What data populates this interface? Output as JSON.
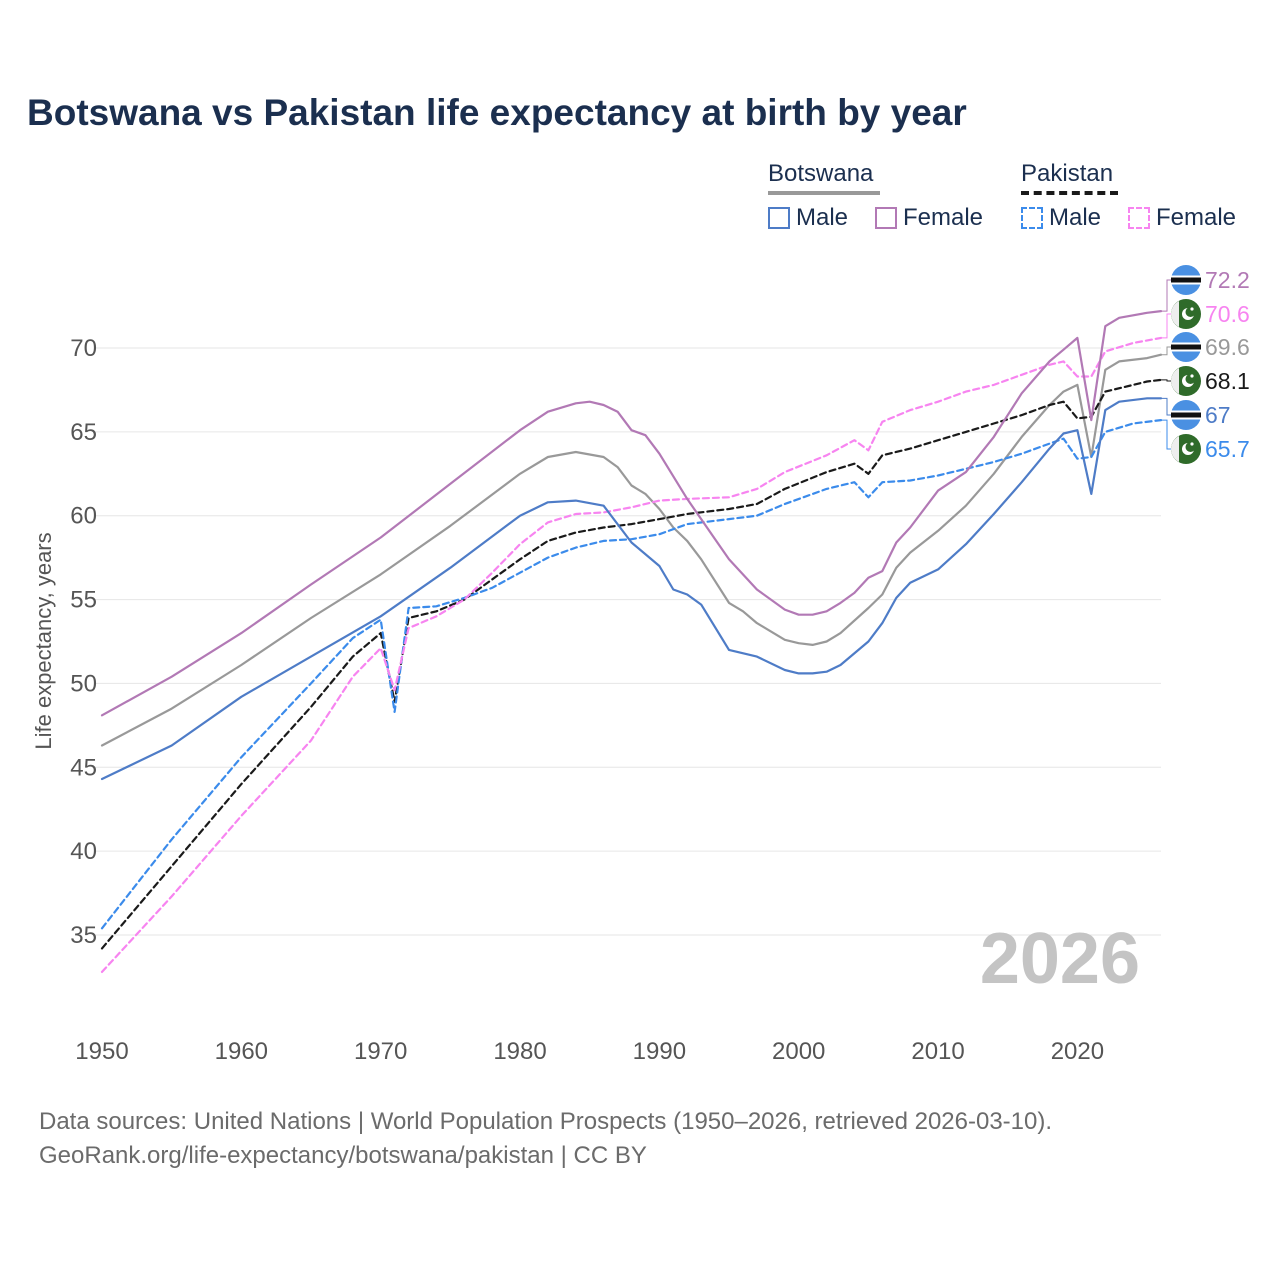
{
  "title": "Botswana vs Pakistan life expectancy at birth by year",
  "legend": {
    "groups": [
      {
        "name": "Botswana",
        "line_color": "#999999",
        "dashed": false,
        "items": [
          {
            "label": "Male",
            "color": "#4e7cc7",
            "dashed": false
          },
          {
            "label": "Female",
            "color": "#b279b5",
            "dashed": false
          }
        ]
      },
      {
        "name": "Pakistan",
        "line_color": "#1a1a1a",
        "dashed": true,
        "items": [
          {
            "label": "Male",
            "color": "#3b8beb",
            "dashed": true
          },
          {
            "label": "Female",
            "color": "#f784f0",
            "dashed": true
          }
        ]
      }
    ]
  },
  "year_watermark": "2026",
  "source": {
    "line1": "Data sources: United Nations | World Population Prospects (1950–2026, retrieved 2026-03-10).",
    "line2": "GeoRank.org/life-expectancy/botswana/pakistan | CC BY"
  },
  "chart_data": {
    "type": "line",
    "title": "Botswana vs Pakistan life expectancy at birth by year",
    "xlabel": "",
    "ylabel": "Life expectancy, years",
    "xlim": [
      1950,
      2026
    ],
    "ylim": [
      30,
      75
    ],
    "x_ticks": [
      1950,
      1960,
      1970,
      1980,
      1990,
      2000,
      2010,
      2020
    ],
    "y_ticks": [
      35,
      40,
      45,
      50,
      55,
      60,
      65,
      70
    ],
    "grid": true,
    "series": [
      {
        "name": "Botswana Male",
        "country": "Botswana",
        "color": "#4e7cc7",
        "dashed": false,
        "end_label": "67",
        "icon": "botswana-flag-icon",
        "points": [
          [
            1950,
            44.3
          ],
          [
            1955,
            46.3
          ],
          [
            1960,
            49.2
          ],
          [
            1965,
            51.6
          ],
          [
            1970,
            54.0
          ],
          [
            1975,
            56.9
          ],
          [
            1980,
            60.0
          ],
          [
            1982,
            60.8
          ],
          [
            1984,
            60.9
          ],
          [
            1986,
            60.6
          ],
          [
            1988,
            58.4
          ],
          [
            1990,
            57.0
          ],
          [
            1991,
            55.6
          ],
          [
            1992,
            55.3
          ],
          [
            1993,
            54.7
          ],
          [
            1995,
            52.0
          ],
          [
            1997,
            51.6
          ],
          [
            1999,
            50.8
          ],
          [
            2000,
            50.6
          ],
          [
            2001,
            50.6
          ],
          [
            2002,
            50.7
          ],
          [
            2003,
            51.1
          ],
          [
            2005,
            52.5
          ],
          [
            2006,
            53.6
          ],
          [
            2007,
            55.1
          ],
          [
            2008,
            56.0
          ],
          [
            2010,
            56.8
          ],
          [
            2012,
            58.3
          ],
          [
            2014,
            60.1
          ],
          [
            2016,
            62.0
          ],
          [
            2018,
            64.0
          ],
          [
            2019,
            64.9
          ],
          [
            2020,
            65.1
          ],
          [
            2021,
            61.3
          ],
          [
            2022,
            66.3
          ],
          [
            2023,
            66.8
          ],
          [
            2025,
            67.0
          ],
          [
            2026,
            67.0
          ]
        ]
      },
      {
        "name": "Botswana Female",
        "country": "Botswana",
        "color": "#b279b5",
        "dashed": false,
        "end_label": "72.2",
        "icon": "botswana-flag-icon",
        "points": [
          [
            1950,
            48.1
          ],
          [
            1955,
            50.4
          ],
          [
            1960,
            53.0
          ],
          [
            1965,
            55.9
          ],
          [
            1970,
            58.7
          ],
          [
            1975,
            61.9
          ],
          [
            1980,
            65.1
          ],
          [
            1982,
            66.2
          ],
          [
            1984,
            66.7
          ],
          [
            1985,
            66.8
          ],
          [
            1986,
            66.6
          ],
          [
            1987,
            66.2
          ],
          [
            1988,
            65.1
          ],
          [
            1989,
            64.8
          ],
          [
            1990,
            63.7
          ],
          [
            1992,
            61.0
          ],
          [
            1994,
            58.6
          ],
          [
            1995,
            57.4
          ],
          [
            1997,
            55.6
          ],
          [
            1999,
            54.4
          ],
          [
            2000,
            54.1
          ],
          [
            2001,
            54.1
          ],
          [
            2002,
            54.3
          ],
          [
            2003,
            54.8
          ],
          [
            2004,
            55.4
          ],
          [
            2005,
            56.3
          ],
          [
            2006,
            56.7
          ],
          [
            2007,
            58.4
          ],
          [
            2008,
            59.3
          ],
          [
            2010,
            61.5
          ],
          [
            2012,
            62.6
          ],
          [
            2014,
            64.7
          ],
          [
            2016,
            67.3
          ],
          [
            2018,
            69.2
          ],
          [
            2019,
            69.9
          ],
          [
            2020,
            70.6
          ],
          [
            2021,
            65.7
          ],
          [
            2022,
            71.3
          ],
          [
            2023,
            71.8
          ],
          [
            2025,
            72.1
          ],
          [
            2026,
            72.2
          ]
        ]
      },
      {
        "name": "Botswana Total",
        "country": "Botswana",
        "color": "#999999",
        "dashed": false,
        "end_label": "69.6",
        "icon": "botswana-flag-icon",
        "points": [
          [
            1950,
            46.3
          ],
          [
            1955,
            48.5
          ],
          [
            1960,
            51.1
          ],
          [
            1965,
            53.9
          ],
          [
            1970,
            56.5
          ],
          [
            1975,
            59.4
          ],
          [
            1980,
            62.5
          ],
          [
            1982,
            63.5
          ],
          [
            1984,
            63.8
          ],
          [
            1986,
            63.5
          ],
          [
            1987,
            62.9
          ],
          [
            1988,
            61.8
          ],
          [
            1989,
            61.3
          ],
          [
            1990,
            60.4
          ],
          [
            1991,
            59.3
          ],
          [
            1992,
            58.5
          ],
          [
            1993,
            57.4
          ],
          [
            1995,
            54.8
          ],
          [
            1996,
            54.3
          ],
          [
            1997,
            53.6
          ],
          [
            1999,
            52.6
          ],
          [
            2000,
            52.4
          ],
          [
            2001,
            52.3
          ],
          [
            2002,
            52.5
          ],
          [
            2003,
            53.0
          ],
          [
            2005,
            54.5
          ],
          [
            2006,
            55.3
          ],
          [
            2007,
            56.9
          ],
          [
            2008,
            57.8
          ],
          [
            2010,
            59.1
          ],
          [
            2012,
            60.6
          ],
          [
            2014,
            62.5
          ],
          [
            2016,
            64.7
          ],
          [
            2018,
            66.6
          ],
          [
            2019,
            67.4
          ],
          [
            2020,
            67.8
          ],
          [
            2021,
            63.5
          ],
          [
            2022,
            68.7
          ],
          [
            2023,
            69.2
          ],
          [
            2025,
            69.4
          ],
          [
            2026,
            69.6
          ]
        ]
      },
      {
        "name": "Pakistan Male",
        "country": "Pakistan",
        "color": "#3b8beb",
        "dashed": true,
        "end_label": "65.7",
        "icon": "pakistan-flag-icon",
        "points": [
          [
            1950,
            35.4
          ],
          [
            1955,
            40.7
          ],
          [
            1960,
            45.6
          ],
          [
            1965,
            50.0
          ],
          [
            1968,
            52.7
          ],
          [
            1970,
            53.8
          ],
          [
            1971,
            48.3
          ],
          [
            1972,
            54.5
          ],
          [
            1974,
            54.6
          ],
          [
            1976,
            55.1
          ],
          [
            1978,
            55.7
          ],
          [
            1980,
            56.6
          ],
          [
            1982,
            57.5
          ],
          [
            1984,
            58.1
          ],
          [
            1986,
            58.5
          ],
          [
            1988,
            58.6
          ],
          [
            1990,
            58.9
          ],
          [
            1992,
            59.5
          ],
          [
            1995,
            59.8
          ],
          [
            1997,
            60.0
          ],
          [
            1999,
            60.7
          ],
          [
            2002,
            61.6
          ],
          [
            2004,
            62.0
          ],
          [
            2005,
            61.1
          ],
          [
            2006,
            62.0
          ],
          [
            2008,
            62.1
          ],
          [
            2010,
            62.4
          ],
          [
            2012,
            62.8
          ],
          [
            2014,
            63.2
          ],
          [
            2016,
            63.7
          ],
          [
            2018,
            64.3
          ],
          [
            2019,
            64.6
          ],
          [
            2020,
            63.4
          ],
          [
            2021,
            63.5
          ],
          [
            2022,
            65.0
          ],
          [
            2024,
            65.5
          ],
          [
            2026,
            65.7
          ]
        ]
      },
      {
        "name": "Pakistan Female",
        "country": "Pakistan",
        "color": "#f784f0",
        "dashed": true,
        "end_label": "70.6",
        "icon": "pakistan-flag-icon",
        "points": [
          [
            1950,
            32.8
          ],
          [
            1955,
            37.3
          ],
          [
            1960,
            42.1
          ],
          [
            1965,
            46.6
          ],
          [
            1968,
            50.4
          ],
          [
            1970,
            52.1
          ],
          [
            1971,
            49.6
          ],
          [
            1972,
            53.3
          ],
          [
            1974,
            54.0
          ],
          [
            1976,
            55.0
          ],
          [
            1978,
            56.6
          ],
          [
            1980,
            58.3
          ],
          [
            1982,
            59.6
          ],
          [
            1984,
            60.1
          ],
          [
            1986,
            60.2
          ],
          [
            1988,
            60.5
          ],
          [
            1990,
            60.9
          ],
          [
            1992,
            61.0
          ],
          [
            1995,
            61.1
          ],
          [
            1997,
            61.6
          ],
          [
            1999,
            62.6
          ],
          [
            2002,
            63.6
          ],
          [
            2004,
            64.5
          ],
          [
            2005,
            63.9
          ],
          [
            2006,
            65.6
          ],
          [
            2008,
            66.3
          ],
          [
            2010,
            66.8
          ],
          [
            2012,
            67.4
          ],
          [
            2014,
            67.8
          ],
          [
            2016,
            68.4
          ],
          [
            2018,
            69.0
          ],
          [
            2019,
            69.2
          ],
          [
            2020,
            68.3
          ],
          [
            2021,
            68.3
          ],
          [
            2022,
            69.8
          ],
          [
            2024,
            70.3
          ],
          [
            2026,
            70.6
          ]
        ]
      },
      {
        "name": "Pakistan Total",
        "country": "Pakistan",
        "color": "#1a1a1a",
        "dashed": true,
        "end_label": "68.1",
        "icon": "pakistan-flag-icon",
        "points": [
          [
            1950,
            34.2
          ],
          [
            1955,
            39.1
          ],
          [
            1960,
            44.0
          ],
          [
            1965,
            48.6
          ],
          [
            1968,
            51.6
          ],
          [
            1970,
            53.0
          ],
          [
            1971,
            48.9
          ],
          [
            1972,
            53.9
          ],
          [
            1974,
            54.3
          ],
          [
            1976,
            55.0
          ],
          [
            1978,
            56.2
          ],
          [
            1980,
            57.4
          ],
          [
            1982,
            58.5
          ],
          [
            1984,
            59.0
          ],
          [
            1986,
            59.3
          ],
          [
            1988,
            59.5
          ],
          [
            1990,
            59.8
          ],
          [
            1992,
            60.1
          ],
          [
            1995,
            60.4
          ],
          [
            1997,
            60.7
          ],
          [
            1999,
            61.6
          ],
          [
            2002,
            62.6
          ],
          [
            2004,
            63.1
          ],
          [
            2005,
            62.5
          ],
          [
            2006,
            63.6
          ],
          [
            2008,
            64.0
          ],
          [
            2010,
            64.5
          ],
          [
            2012,
            65.0
          ],
          [
            2014,
            65.5
          ],
          [
            2016,
            66.0
          ],
          [
            2018,
            66.6
          ],
          [
            2019,
            66.8
          ],
          [
            2020,
            65.8
          ],
          [
            2021,
            65.9
          ],
          [
            2022,
            67.4
          ],
          [
            2024,
            67.8
          ],
          [
            2025,
            68.0
          ],
          [
            2026,
            68.1
          ]
        ]
      }
    ]
  }
}
